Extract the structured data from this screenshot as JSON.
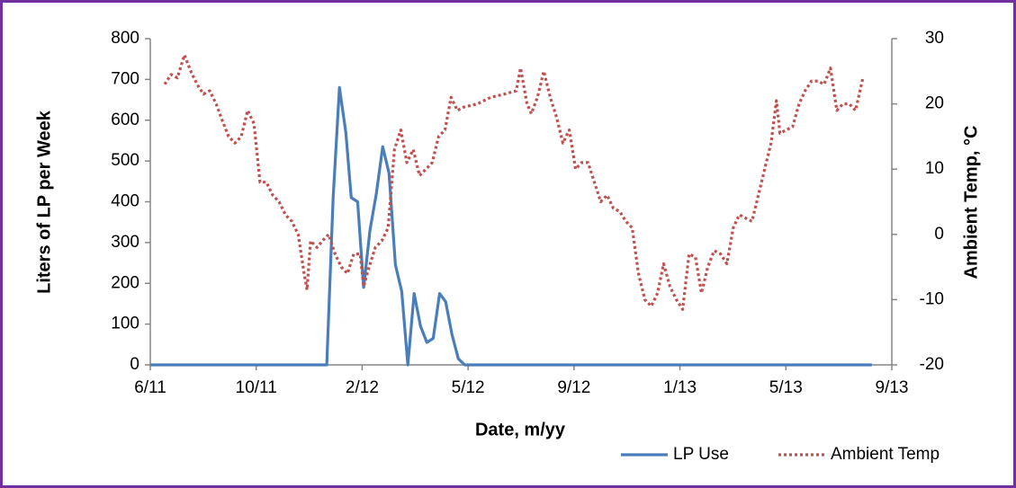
{
  "chart_data": {
    "type": "line",
    "x_label": "Date, m/yy",
    "y_label": "Liters  of LP per Week",
    "y2_label": "Ambient  Temp, °C",
    "xlim": [
      2011.4167,
      2013.75
    ],
    "xticks": [
      {
        "value": 2011.4167,
        "label": "6/11"
      },
      {
        "value": 2011.75,
        "label": "10/11"
      },
      {
        "value": 2012.0833,
        "label": "2/12"
      },
      {
        "value": 2012.4167,
        "label": "5/12"
      },
      {
        "value": 2012.75,
        "label": "9/12"
      },
      {
        "value": 2013.0833,
        "label": "1/13"
      },
      {
        "value": 2013.4167,
        "label": "5/13"
      },
      {
        "value": 2013.75,
        "label": "9/13"
      }
    ],
    "ylim": [
      0,
      800
    ],
    "yticks": [
      0,
      100,
      200,
      300,
      400,
      500,
      600,
      700,
      800
    ],
    "y2lim": [
      -20,
      30
    ],
    "y2ticks": [
      -20,
      -10,
      0,
      10,
      20,
      30
    ],
    "grid": false,
    "legend": "bottom-right",
    "series": [
      {
        "name": "LP Use",
        "color": "#4a7ebb",
        "line_style": "solid",
        "axis": "y",
        "x": [
          2011.417,
          2011.972,
          2011.992,
          2012.012,
          2012.032,
          2012.049,
          2012.069,
          2012.088,
          2012.108,
          2012.128,
          2012.148,
          2012.168,
          2012.188,
          2012.208,
          2012.227,
          2012.247,
          2012.267,
          2012.287,
          2012.307,
          2012.327,
          2012.346,
          2012.366,
          2012.386,
          2012.406,
          2013.687
        ],
        "values": [
          0,
          0,
          410,
          680,
          570,
          410,
          400,
          190,
          330,
          420,
          535,
          470,
          245,
          180,
          0,
          175,
          95,
          55,
          65,
          175,
          155,
          75,
          15,
          0,
          0
        ]
      },
      {
        "name": "Ambient Temp",
        "color": "#c0504d",
        "line_style": "dotted",
        "axis": "y2",
        "x": [
          2011.462,
          2011.482,
          2011.502,
          2011.524,
          2011.544,
          2011.564,
          2011.584,
          2011.604,
          2011.624,
          2011.643,
          2011.663,
          2011.683,
          2011.703,
          2011.723,
          2011.743,
          2011.762,
          2011.782,
          2011.802,
          2011.822,
          2011.842,
          2011.862,
          2011.882,
          2011.901,
          2011.91,
          2011.921,
          2011.941,
          2011.958,
          2011.978,
          2011.998,
          2012.018,
          2012.037,
          2012.057,
          2012.077,
          2012.088,
          2012.105,
          2012.125,
          2012.145,
          2012.165,
          2012.185,
          2012.205,
          2012.224,
          2012.244,
          2012.264,
          2012.284,
          2012.304,
          2012.324,
          2012.344,
          2012.363,
          2012.383,
          2012.403,
          2012.446,
          2012.488,
          2012.531,
          2012.568,
          2012.582,
          2012.602,
          2012.616,
          2012.635,
          2012.655,
          2012.675,
          2012.695,
          2012.715,
          2012.735,
          2012.755,
          2012.774,
          2012.794,
          2012.814,
          2012.834,
          2012.854,
          2012.874,
          2012.894,
          2012.913,
          2012.933,
          2012.953,
          2012.973,
          2012.993,
          2013.013,
          2013.032,
          2013.052,
          2013.072,
          2013.092,
          2013.112,
          2013.132,
          2013.151,
          2013.171,
          2013.191,
          2013.211,
          2013.231,
          2013.251,
          2013.27,
          2013.29,
          2013.31,
          2013.33,
          2013.35,
          2013.37,
          2013.387,
          2013.398,
          2013.418,
          2013.438,
          2013.458,
          2013.477,
          2013.497,
          2013.517,
          2013.537,
          2013.557,
          2013.577,
          2013.596,
          2013.616,
          2013.636,
          2013.659
        ],
        "values": [
          23,
          24.5,
          24,
          27.5,
          25,
          23,
          21.5,
          22,
          20,
          17.5,
          15,
          14,
          15,
          19,
          17,
          8,
          8,
          6,
          5,
          3,
          2,
          0,
          -6,
          -8.5,
          -1,
          -2,
          -1,
          0,
          -3,
          -5,
          -6,
          -3,
          -3,
          -8,
          -5,
          -2,
          -1,
          1,
          13,
          16,
          11,
          13,
          9,
          10,
          11,
          15,
          16,
          21,
          19,
          19.5,
          20,
          21,
          21.5,
          22,
          25.5,
          20,
          18.5,
          21,
          25,
          21,
          18,
          14,
          16,
          10,
          11,
          11,
          8,
          5,
          6,
          4,
          3.5,
          2,
          1,
          -6,
          -10,
          -11,
          -9,
          -4.5,
          -8,
          -10,
          -11.5,
          -3,
          -3.5,
          -9,
          -5,
          -2.5,
          -3,
          -4.5,
          1,
          3,
          2.5,
          2,
          6,
          10,
          14,
          20.5,
          15.5,
          16,
          16.5,
          20,
          22,
          23.5,
          23.5,
          23,
          25.5,
          19,
          20,
          20,
          19,
          24
        ]
      }
    ]
  }
}
